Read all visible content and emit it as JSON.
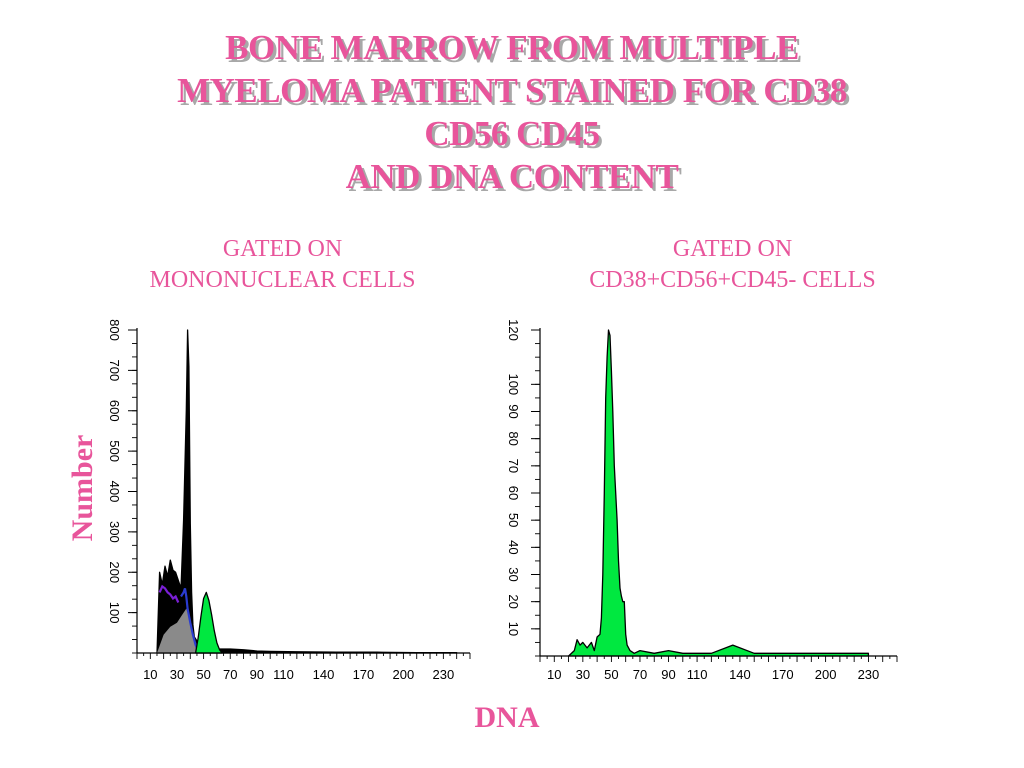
{
  "title_lines": [
    "BONE MARROW FROM MULTIPLE",
    "MYELOMA PATIENT STAINED FOR CD38",
    "CD56 CD45",
    "AND DNA CONTENT"
  ],
  "shared_ylabel": "Number",
  "shared_xlabel": "DNA",
  "colors": {
    "title": "#e8559b",
    "black_population": "#000000",
    "gray_population": "#8a8a8a",
    "purple_population": "#7a1fd6",
    "blue_population": "#2a3cd0",
    "green_population": "#00e840"
  },
  "panels": [
    {
      "subtitle_lines": [
        "GATED ON",
        "MONONUCLEAR CELLS"
      ],
      "y_ticks": [
        "100",
        "200",
        "300",
        "400",
        "500",
        "600",
        "700",
        "800"
      ],
      "x_ticks": [
        "10",
        "30",
        "50",
        "70",
        "90",
        "110",
        "140",
        "170",
        "200",
        "230"
      ]
    },
    {
      "subtitle_lines": [
        "GATED ON",
        "CD38+CD56+CD45- CELLS"
      ],
      "y_ticks": [
        "10",
        "20",
        "30",
        "40",
        "50",
        "60",
        "70",
        "80",
        "90",
        "100",
        "120"
      ],
      "x_ticks": [
        "10",
        "30",
        "50",
        "70",
        "90",
        "110",
        "140",
        "170",
        "200",
        "230"
      ]
    }
  ],
  "chart_data": [
    {
      "type": "area",
      "xlabel": "DNA",
      "ylabel": "Number",
      "xlim": [
        0,
        250
      ],
      "ylim": [
        0,
        800
      ],
      "x_tick_values": [
        10,
        30,
        50,
        70,
        90,
        110,
        140,
        170,
        200,
        230
      ],
      "y_tick_values": [
        100,
        200,
        300,
        400,
        500,
        600,
        700,
        800
      ],
      "series": [
        {
          "color": "black",
          "x": [
            15,
            17,
            19,
            21,
            23,
            25,
            27,
            29,
            31,
            33,
            35,
            37,
            38,
            39,
            40,
            41,
            42,
            43,
            45,
            48,
            52,
            56,
            60,
            70,
            80,
            90,
            100,
            120,
            150,
            180,
            210,
            240
          ],
          "y": [
            0,
            200,
            170,
            215,
            190,
            230,
            205,
            200,
            180,
            160,
            330,
            600,
            800,
            710,
            320,
            150,
            70,
            40,
            30,
            20,
            15,
            12,
            10,
            10,
            8,
            5,
            4,
            3,
            2,
            2,
            1,
            1
          ]
        },
        {
          "color": "gray",
          "x": [
            15,
            20,
            25,
            30,
            34,
            37,
            39,
            41,
            43,
            45,
            47
          ],
          "y": [
            0,
            45,
            65,
            75,
            95,
            110,
            90,
            60,
            25,
            5,
            0
          ]
        },
        {
          "color": "purple",
          "x": [
            17,
            19,
            21,
            23,
            25,
            27,
            29,
            31
          ],
          "y": [
            150,
            165,
            160,
            150,
            145,
            135,
            140,
            125
          ]
        },
        {
          "color": "blue",
          "x": [
            33,
            35,
            36,
            37,
            38,
            40,
            42,
            44,
            46
          ],
          "y": [
            140,
            150,
            160,
            140,
            110,
            75,
            45,
            20,
            5
          ]
        },
        {
          "color": "green",
          "x": [
            44,
            46,
            48,
            50,
            52,
            54,
            56,
            58,
            60,
            62,
            64
          ],
          "y": [
            0,
            40,
            90,
            135,
            150,
            130,
            95,
            55,
            25,
            8,
            0
          ]
        }
      ]
    },
    {
      "type": "area",
      "xlabel": "DNA",
      "ylabel": "Number",
      "xlim": [
        0,
        250
      ],
      "ylim": [
        0,
        120
      ],
      "x_tick_values": [
        10,
        30,
        50,
        70,
        90,
        110,
        140,
        170,
        200,
        230
      ],
      "y_tick_values": [
        10,
        20,
        30,
        40,
        50,
        60,
        70,
        80,
        90,
        100,
        120
      ],
      "series": [
        {
          "color": "green",
          "x": [
            20,
            24,
            26,
            28,
            30,
            33,
            36,
            38,
            40,
            42,
            43,
            44,
            45,
            46,
            47,
            48,
            49,
            50,
            51,
            52,
            53,
            54,
            55,
            56,
            57,
            58,
            59,
            60,
            61,
            63,
            66,
            70,
            80,
            90,
            100,
            120,
            135,
            150,
            170,
            200,
            230
          ],
          "y": [
            0,
            2,
            6,
            4,
            5,
            3,
            5,
            2,
            7,
            8,
            14,
            30,
            60,
            95,
            110,
            120,
            118,
            105,
            90,
            70,
            60,
            50,
            35,
            25,
            22,
            20,
            20,
            8,
            4,
            2,
            1,
            2,
            1,
            2,
            1,
            1,
            4,
            1,
            1,
            1,
            1
          ]
        }
      ]
    }
  ]
}
